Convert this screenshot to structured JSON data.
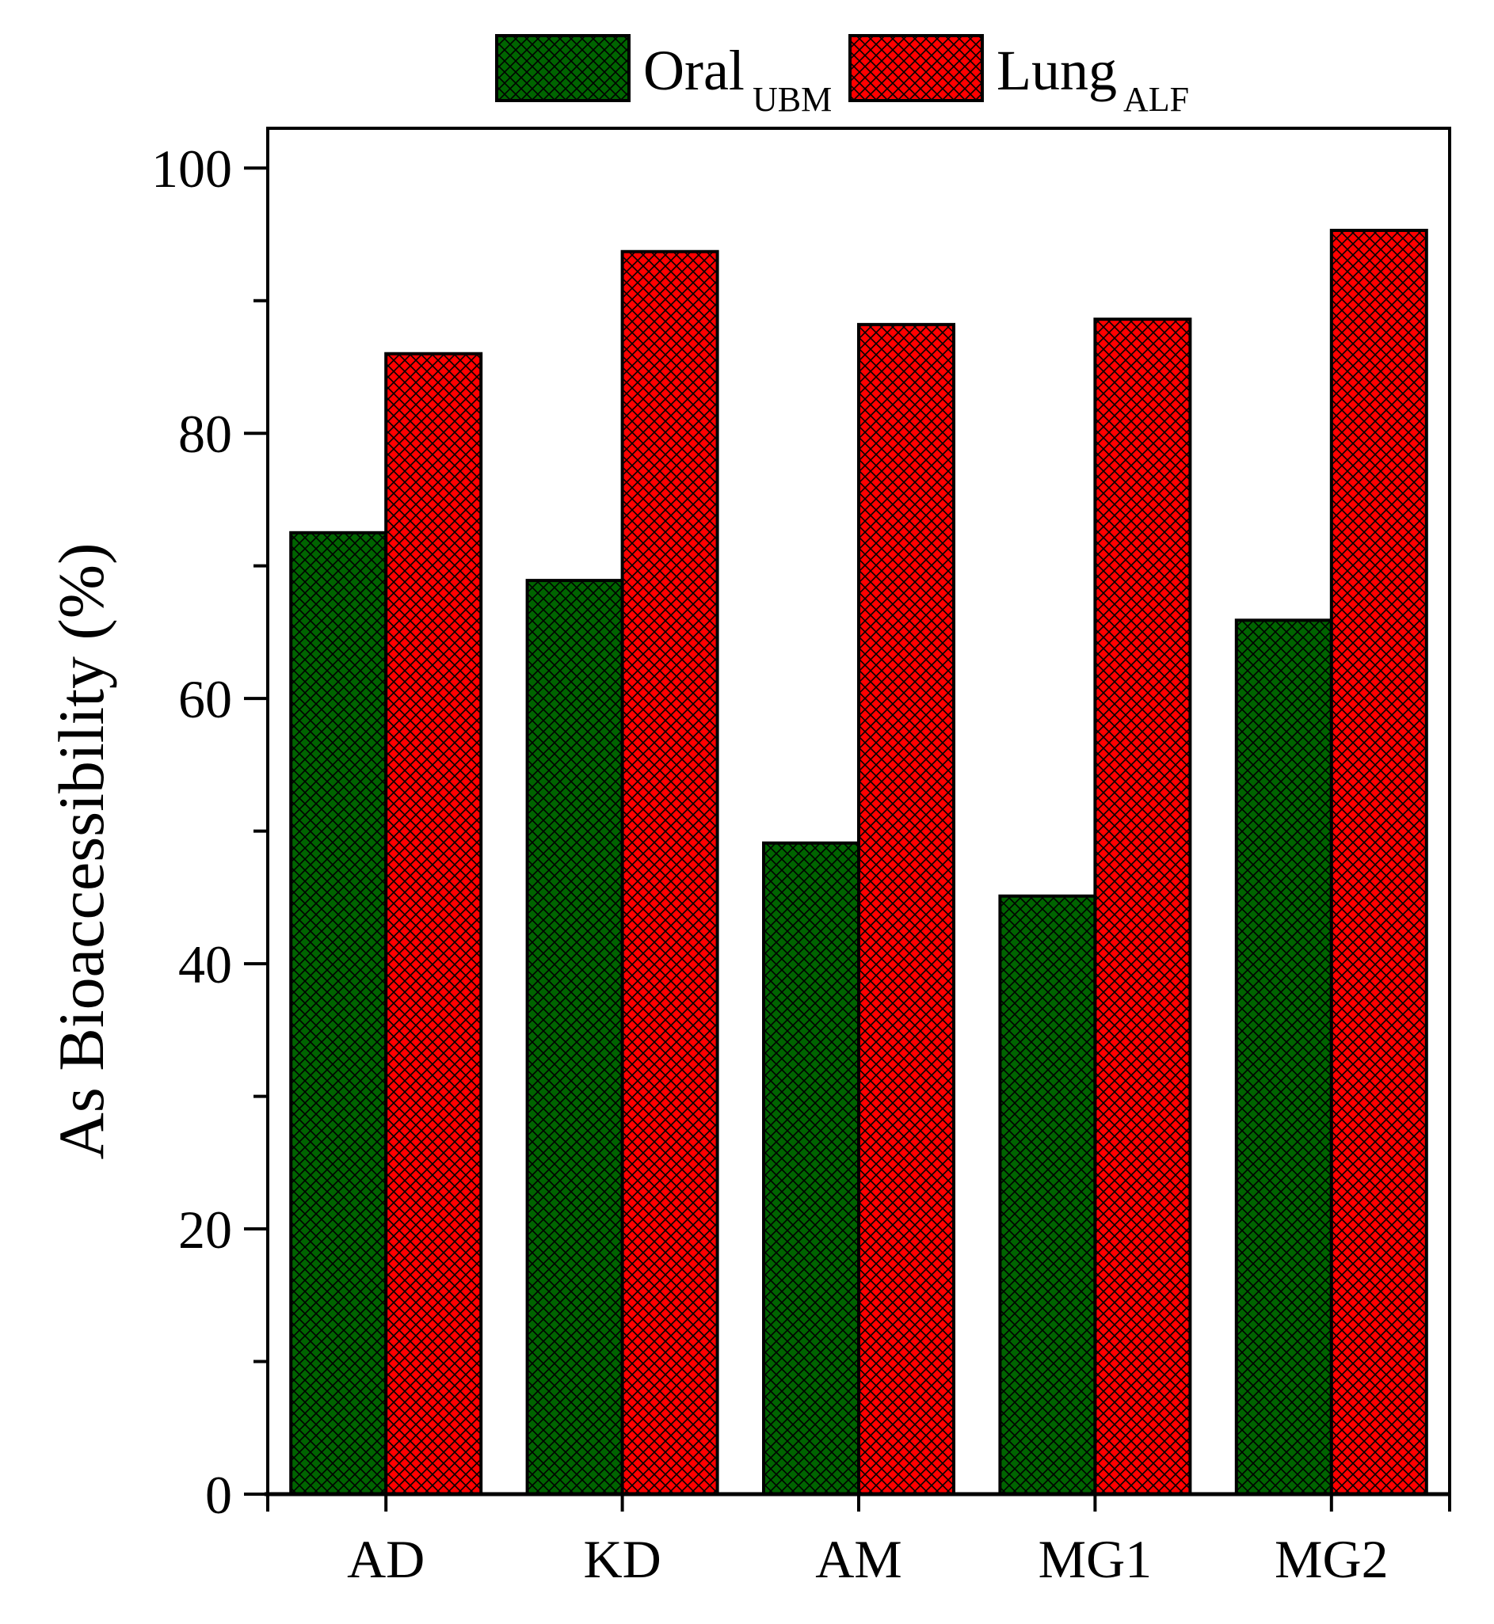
{
  "chart_data": {
    "type": "bar",
    "title": "",
    "xlabel": "",
    "ylabel": "As Bioaccessibility (%)",
    "ylim": [
      0,
      103
    ],
    "yticks_labeled": [
      0,
      20,
      40,
      60,
      80,
      100
    ],
    "yticks_minor": [
      10,
      30,
      50,
      70,
      90
    ],
    "categories": [
      "AD",
      "KD",
      "AM",
      "MG1",
      "MG2"
    ],
    "series": [
      {
        "name": "Oral",
        "subscript": "UBM",
        "color": "#006400",
        "pattern": "crosshatch",
        "values": [
          72.5,
          68.9,
          49.1,
          45.1,
          65.9
        ]
      },
      {
        "name": "Lung",
        "subscript": "ALF",
        "color": "#ff0000",
        "pattern": "crosshatch",
        "values": [
          86.0,
          93.7,
          88.2,
          88.6,
          95.3
        ]
      }
    ],
    "legend_position": "top-center",
    "grid": false
  }
}
